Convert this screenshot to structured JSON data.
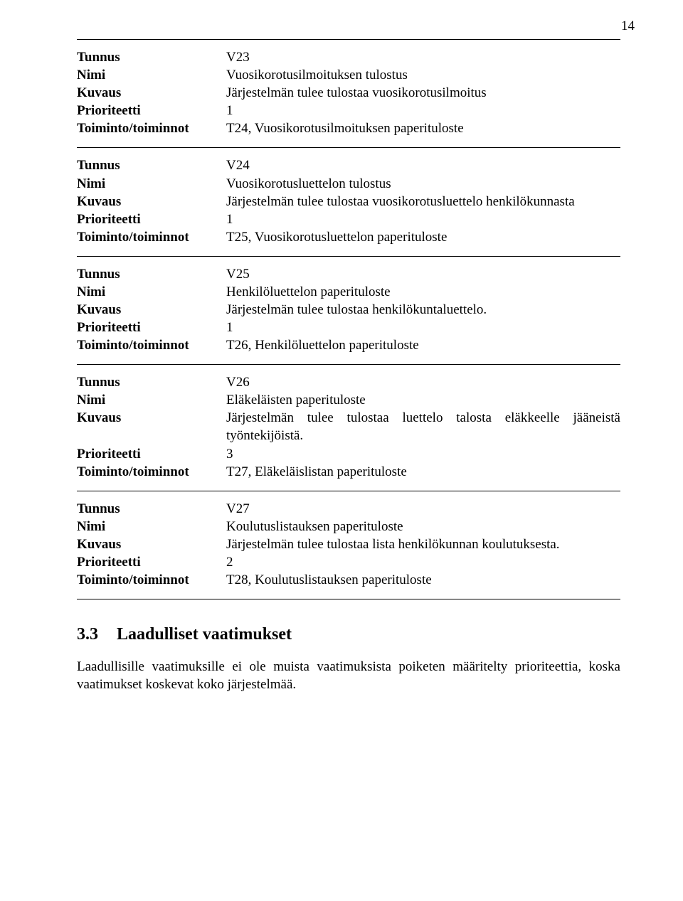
{
  "page_number": "14",
  "labels": {
    "tunnus": "Tunnus",
    "nimi": "Nimi",
    "kuvaus": "Kuvaus",
    "prioriteetti": "Prioriteetti",
    "toiminto": "Toiminto/toiminnot"
  },
  "blocks": [
    {
      "tunnus": "V23",
      "nimi": "Vuosikorotusilmoituksen tulostus",
      "kuvaus": "Järjestelmän tulee tulostaa vuosikorotusilmoitus",
      "prioriteetti": "1",
      "toiminto": "T24, Vuosikorotusilmoituksen paperituloste"
    },
    {
      "tunnus": "V24",
      "nimi": "Vuosikorotusluettelon tulostus",
      "kuvaus": "Järjestelmän tulee tulostaa vuosikorotusluettelo henkilökunnasta",
      "prioriteetti": "1",
      "toiminto": "T25, Vuosikorotusluettelon paperituloste"
    },
    {
      "tunnus": "V25",
      "nimi": "Henkilöluettelon paperituloste",
      "kuvaus": "Järjestelmän tulee tulostaa henkilökuntaluettelo.",
      "prioriteetti": "1",
      "toiminto": "T26, Henkilöluettelon paperituloste"
    },
    {
      "tunnus": "V26",
      "nimi": "Eläkeläisten paperituloste",
      "kuvaus": "Järjestelmän tulee tulostaa luettelo talosta eläkkeelle jääneistä työntekijöistä.",
      "prioriteetti": "3",
      "toiminto": "T27, Eläkeläislistan paperituloste"
    },
    {
      "tunnus": "V27",
      "nimi": "Koulutuslistauksen paperituloste",
      "kuvaus": "Järjestelmän tulee tulostaa lista henkilökunnan koulutuksesta.",
      "prioriteetti": "2",
      "toiminto": "T28, Koulutuslistauksen paperituloste"
    }
  ],
  "section": {
    "number": "3.3",
    "title": "Laadulliset vaatimukset",
    "paragraph": "Laadullisille vaatimuksille ei ole muista vaatimuksista poiketen määritelty prioriteettia, koska vaatimukset koskevat koko järjestelmää."
  }
}
